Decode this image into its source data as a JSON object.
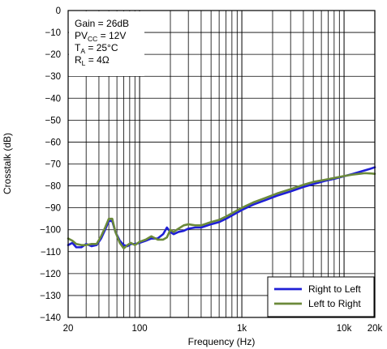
{
  "chart_data": {
    "type": "line",
    "title": "",
    "xlabel": "Frequency (Hz)",
    "ylabel": "Crosstalk (dB)",
    "x_scale": "log",
    "xlim": [
      20,
      20000
    ],
    "ylim": [
      -140,
      0
    ],
    "grid": true,
    "legend_position": "bottom-right",
    "x_ticks": [
      {
        "value": 20,
        "label": "20"
      },
      {
        "value": 100,
        "label": "100"
      },
      {
        "value": 1000,
        "label": "1k"
      },
      {
        "value": 10000,
        "label": "10k"
      },
      {
        "value": 20000,
        "label": "20k"
      }
    ],
    "y_ticks": [
      {
        "value": 0,
        "label": "0"
      },
      {
        "value": -10,
        "label": "−10"
      },
      {
        "value": -20,
        "label": "−20"
      },
      {
        "value": -30,
        "label": "−30"
      },
      {
        "value": -40,
        "label": "−40"
      },
      {
        "value": -50,
        "label": "−50"
      },
      {
        "value": -60,
        "label": "−60"
      },
      {
        "value": -70,
        "label": "−70"
      },
      {
        "value": -80,
        "label": "−80"
      },
      {
        "value": -90,
        "label": "−90"
      },
      {
        "value": -100,
        "label": "−100"
      },
      {
        "value": -110,
        "label": "−110"
      },
      {
        "value": -120,
        "label": "−120"
      },
      {
        "value": -130,
        "label": "−130"
      },
      {
        "value": -140,
        "label": "−140"
      }
    ],
    "annotations": [
      {
        "parts": [
          {
            "t": "Gain = 26dB"
          }
        ]
      },
      {
        "parts": [
          {
            "t": "PV"
          },
          {
            "t": "CC",
            "sub": true
          },
          {
            "t": " = 12V"
          }
        ]
      },
      {
        "parts": [
          {
            "t": "T"
          },
          {
            "t": "A",
            "sub": true
          },
          {
            "t": " = 25°C"
          }
        ]
      },
      {
        "parts": [
          {
            "t": "R"
          },
          {
            "t": "L",
            "sub": true
          },
          {
            "t": " = 4Ω"
          }
        ]
      }
    ],
    "series": [
      {
        "name": "Right to Left",
        "color": "#1f1fd6",
        "points": [
          [
            20,
            -107
          ],
          [
            22,
            -106
          ],
          [
            24,
            -108
          ],
          [
            27,
            -108
          ],
          [
            30,
            -106.5
          ],
          [
            34,
            -107.5
          ],
          [
            38,
            -107
          ],
          [
            42,
            -104
          ],
          [
            46,
            -100
          ],
          [
            50,
            -96
          ],
          [
            54,
            -96
          ],
          [
            58,
            -101
          ],
          [
            64,
            -105
          ],
          [
            70,
            -107
          ],
          [
            76,
            -107.5
          ],
          [
            82,
            -106.5
          ],
          [
            90,
            -106.5
          ],
          [
            100,
            -106
          ],
          [
            115,
            -105
          ],
          [
            130,
            -104
          ],
          [
            150,
            -104
          ],
          [
            170,
            -102
          ],
          [
            185,
            -99
          ],
          [
            200,
            -101
          ],
          [
            215,
            -102
          ],
          [
            240,
            -101
          ],
          [
            270,
            -100.5
          ],
          [
            300,
            -99.5
          ],
          [
            350,
            -99
          ],
          [
            400,
            -99
          ],
          [
            500,
            -97.5
          ],
          [
            600,
            -96.5
          ],
          [
            700,
            -95
          ],
          [
            800,
            -93.5
          ],
          [
            1000,
            -91
          ],
          [
            1300,
            -88.5
          ],
          [
            1700,
            -86.5
          ],
          [
            2200,
            -84.5
          ],
          [
            3000,
            -82.5
          ],
          [
            4000,
            -80.5
          ],
          [
            5000,
            -79.2
          ],
          [
            6500,
            -77.7
          ],
          [
            8000,
            -76.8
          ],
          [
            10000,
            -75.6
          ],
          [
            12000,
            -74.6
          ],
          [
            14000,
            -73.7
          ],
          [
            16000,
            -72.9
          ],
          [
            18000,
            -72.2
          ],
          [
            20000,
            -71.5
          ]
        ]
      },
      {
        "name": "Left to Right",
        "color": "#6b8a3a",
        "points": [
          [
            20,
            -104
          ],
          [
            22,
            -105
          ],
          [
            24,
            -106.5
          ],
          [
            27,
            -107
          ],
          [
            30,
            -107
          ],
          [
            34,
            -106.5
          ],
          [
            38,
            -106.5
          ],
          [
            42,
            -103
          ],
          [
            46,
            -99
          ],
          [
            50,
            -95
          ],
          [
            54,
            -95
          ],
          [
            58,
            -101
          ],
          [
            64,
            -106
          ],
          [
            70,
            -108.5
          ],
          [
            76,
            -107
          ],
          [
            82,
            -106
          ],
          [
            90,
            -107
          ],
          [
            100,
            -105.5
          ],
          [
            115,
            -104.5
          ],
          [
            130,
            -103
          ],
          [
            150,
            -104.5
          ],
          [
            170,
            -104.5
          ],
          [
            185,
            -103.5
          ],
          [
            200,
            -100
          ],
          [
            215,
            -101
          ],
          [
            240,
            -99.5
          ],
          [
            270,
            -98
          ],
          [
            300,
            -97.5
          ],
          [
            350,
            -98
          ],
          [
            400,
            -98
          ],
          [
            500,
            -96.5
          ],
          [
            600,
            -95.5
          ],
          [
            700,
            -94
          ],
          [
            800,
            -92.5
          ],
          [
            1000,
            -90
          ],
          [
            1300,
            -87.5
          ],
          [
            1700,
            -85.5
          ],
          [
            2200,
            -83.5
          ],
          [
            3000,
            -81.5
          ],
          [
            4000,
            -79.5
          ],
          [
            5000,
            -78.2
          ],
          [
            6500,
            -77.2
          ],
          [
            8000,
            -76.4
          ],
          [
            10000,
            -75.5
          ],
          [
            12000,
            -74.9
          ],
          [
            14000,
            -74.5
          ],
          [
            16000,
            -74.2
          ],
          [
            18000,
            -74.3
          ],
          [
            20000,
            -74.5
          ]
        ]
      }
    ]
  }
}
